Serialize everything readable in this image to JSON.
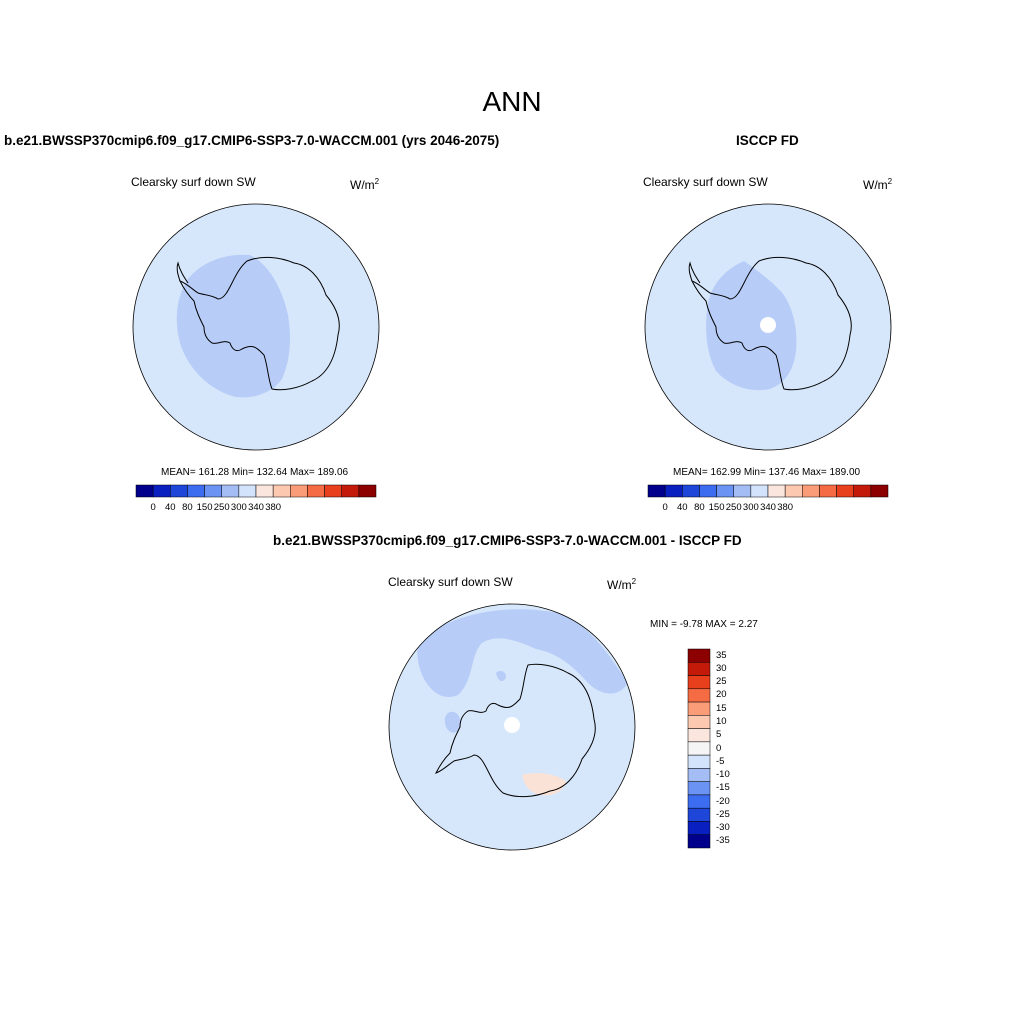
{
  "main_title": "ANN",
  "panels": [
    {
      "title": "b.e21.BWSSP370cmip6.f09_g17.CMIP6-SSP3-7.0-WACCM.001 (yrs 2046-2075)",
      "variable": "Clearsky surf down SW",
      "units_base": "W/m",
      "units_exp": "2",
      "stats": "MEAN= 161.28  Min= 132.64  Max= 189.06"
    },
    {
      "title": "ISCCP FD",
      "variable": "Clearsky surf down SW",
      "units_base": "W/m",
      "units_exp": "2",
      "stats": "MEAN= 162.99  Min= 137.46  Max= 189.00"
    },
    {
      "title": "b.e21.BWSSP370cmip6.f09_g17.CMIP6-SSP3-7.0-WACCM.001 - ISCCP FD",
      "variable": "Clearsky surf down SW",
      "units_base": "W/m",
      "units_exp": "2",
      "stats": "MIN =  -9.78 MAX =   2.27"
    }
  ],
  "horizontal_colorbar": {
    "colors": [
      "#00008c",
      "#0a1fbf",
      "#1e46d8",
      "#3c6cf0",
      "#6b93f3",
      "#a4bdf5",
      "#d2e3fb",
      "#fbe6de",
      "#fcc8b0",
      "#fb9c79",
      "#f56c44",
      "#e83f1c",
      "#c31a0a",
      "#8c0000"
    ],
    "ticks": [
      "0",
      "40",
      "80",
      "150",
      "250",
      "300",
      "340",
      "380"
    ]
  },
  "vertical_colorbar": {
    "colors": [
      "#8c0000",
      "#c31a0a",
      "#e83f1c",
      "#f56c44",
      "#fb9c79",
      "#fcc8b0",
      "#fbe6de",
      "#f5f5f5",
      "#d2e3fb",
      "#a4bdf5",
      "#6b93f3",
      "#3c6cf0",
      "#1e46d8",
      "#0a1fbf",
      "#00008c"
    ],
    "ticks": [
      "35",
      "30",
      "25",
      "20",
      "15",
      "10",
      "5",
      "0",
      "-5",
      "-10",
      "-15",
      "-20",
      "-25",
      "-30",
      "-35"
    ]
  },
  "map_colors": {
    "ocean": "#d7e7fb",
    "interior": "#b7cdf8",
    "positive": "#fbe2d6",
    "missing": "#ffffff",
    "coastline": "#000000"
  }
}
